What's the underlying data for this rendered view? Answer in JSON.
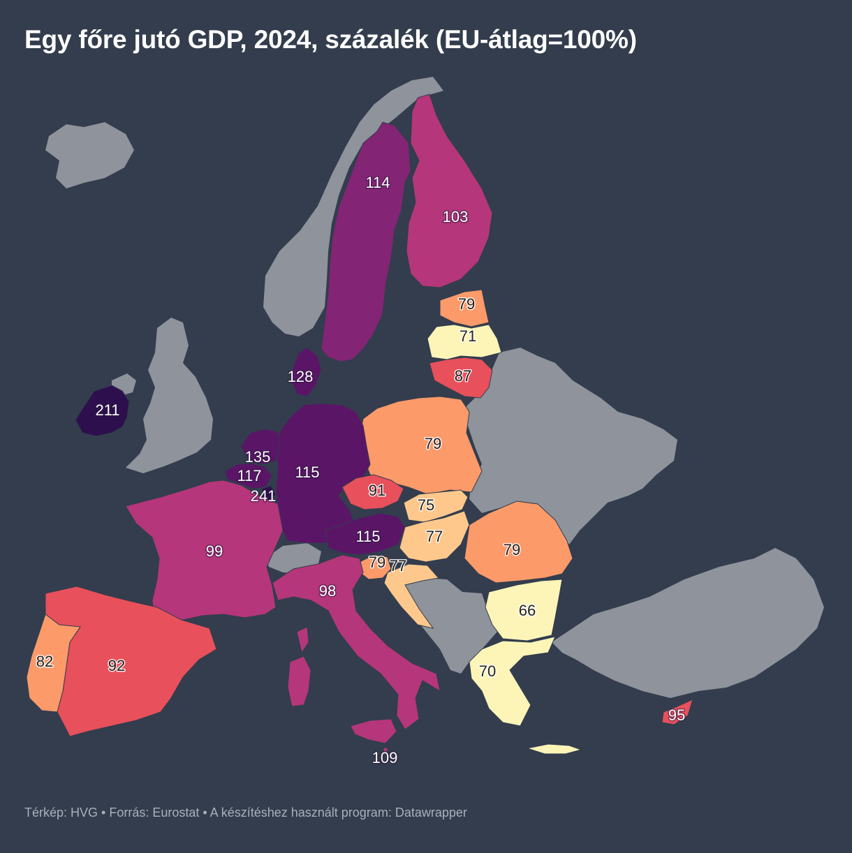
{
  "title": "Egy főre jutó GDP, 2024, százalék (EU-átlag=100%)",
  "footer": "Térkép: HVG • Forrás: Eurostat • A készítéshez használt program: Datawrapper",
  "colors": {
    "background": "#333d4d",
    "non_eu": "#8e939c",
    "scale": [
      "#fdf5b8",
      "#fec88d",
      "#fc9a6a",
      "#e8505b",
      "#c43f6e",
      "#b5367a",
      "#832474",
      "#5a1566",
      "#2d0f4e"
    ]
  },
  "chart_data": {
    "type": "choropleth",
    "title": "Egy főre jutó GDP, 2024, százalék (EU-átlag=100%)",
    "unit": "% of EU average",
    "values": [
      {
        "country": "Ireland",
        "value": 211
      },
      {
        "country": "Luxembourg",
        "value": 241
      },
      {
        "country": "Netherlands",
        "value": 135
      },
      {
        "country": "Denmark",
        "value": 128
      },
      {
        "country": "Belgium",
        "value": 117
      },
      {
        "country": "Austria",
        "value": 115
      },
      {
        "country": "Germany",
        "value": 115
      },
      {
        "country": "Sweden",
        "value": 114
      },
      {
        "country": "Malta",
        "value": 109
      },
      {
        "country": "Finland",
        "value": 103
      },
      {
        "country": "France",
        "value": 99
      },
      {
        "country": "Italy",
        "value": 98
      },
      {
        "country": "Cyprus",
        "value": 95
      },
      {
        "country": "Spain",
        "value": 92
      },
      {
        "country": "Czechia",
        "value": 91
      },
      {
        "country": "Lithuania",
        "value": 87
      },
      {
        "country": "Portugal",
        "value": 82
      },
      {
        "country": "Estonia",
        "value": 79
      },
      {
        "country": "Poland",
        "value": 79
      },
      {
        "country": "Slovenia",
        "value": 79
      },
      {
        "country": "Romania",
        "value": 79
      },
      {
        "country": "Hungary",
        "value": 77
      },
      {
        "country": "Croatia",
        "value": 77
      },
      {
        "country": "Slovakia",
        "value": 75
      },
      {
        "country": "Latvia",
        "value": 71
      },
      {
        "country": "Greece",
        "value": 70
      },
      {
        "country": "Bulgaria",
        "value": 66
      }
    ]
  }
}
